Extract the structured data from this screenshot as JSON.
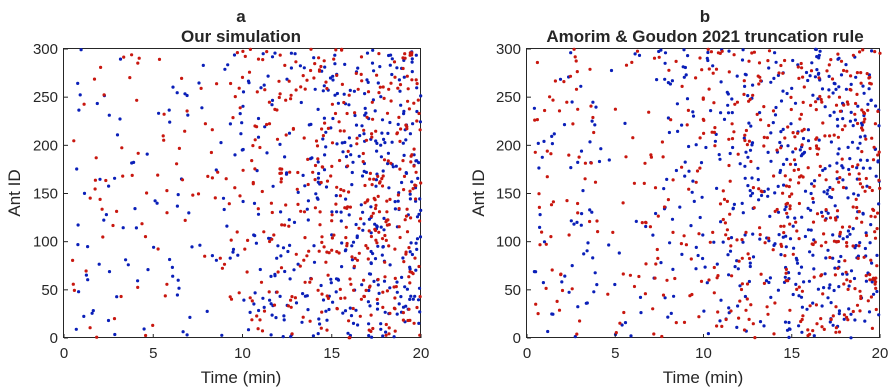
{
  "chart_data": [
    {
      "type": "scatter",
      "panel_letter": "a",
      "title": "Our simulation",
      "xlabel": "Time (min)",
      "ylabel": "Ant ID",
      "xlim": [
        0,
        20
      ],
      "ylim": [
        0,
        300
      ],
      "xticks": [
        0,
        5,
        10,
        15,
        20
      ],
      "yticks": [
        0,
        50,
        100,
        150,
        200,
        250,
        300
      ],
      "grid": false,
      "series_colors": [
        "#0a1fb8",
        "#c8170f"
      ],
      "seed": 11,
      "num_points_per_series": 480,
      "density_note": "points sparse before ~7 min, dense afterwards; earliest points near t=0.5-1 min"
    },
    {
      "type": "scatter",
      "panel_letter": "b",
      "title": "Amorim & Goudon 2021 truncation rule",
      "xlabel": "Time (min)",
      "ylabel": "Ant ID",
      "xlim": [
        0,
        20
      ],
      "ylim": [
        0,
        300
      ],
      "xticks": [
        0,
        5,
        10,
        15,
        20
      ],
      "yticks": [
        0,
        50,
        100,
        150,
        200,
        250,
        300
      ],
      "grid": false,
      "series_colors": [
        "#0a1fb8",
        "#c8170f"
      ],
      "seed": 29,
      "num_points_per_series": 520,
      "density_note": "points sparse before ~4 min, dense afterwards; earliest points near t=0.5-1 min"
    }
  ]
}
